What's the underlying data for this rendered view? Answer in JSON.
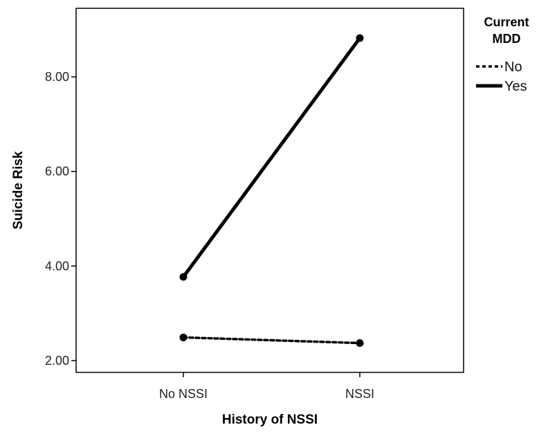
{
  "chart_data": {
    "type": "line",
    "title": "",
    "xlabel": "History of NSSI",
    "ylabel": "Suicide Risk",
    "categories": [
      "No NSSI",
      "NSSI"
    ],
    "ylim": [
      1.75,
      9.45
    ],
    "yticks": [
      2.0,
      4.0,
      6.0,
      8.0
    ],
    "ytick_labels": [
      "2.00",
      "4.00",
      "6.00",
      "8.00"
    ],
    "legend": {
      "title_lines": [
        "Current",
        "MDD"
      ],
      "placement": "right"
    },
    "series": [
      {
        "name": "No",
        "values": [
          2.49,
          2.37
        ],
        "style": "dashed",
        "color": "#000000"
      },
      {
        "name": "Yes",
        "values": [
          3.77,
          8.82
        ],
        "style": "solid",
        "color": "#000000"
      }
    ],
    "grid": false
  }
}
